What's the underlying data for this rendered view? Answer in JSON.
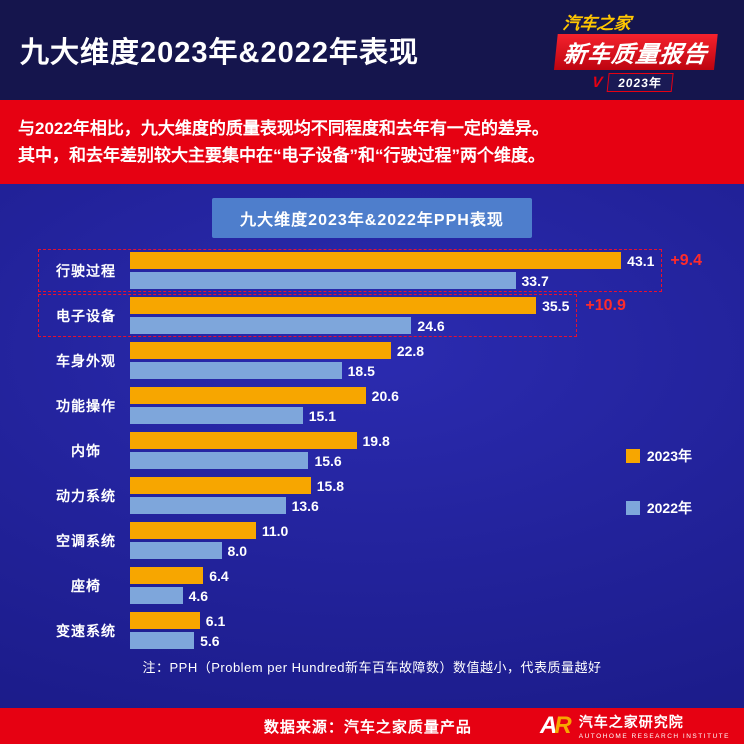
{
  "header": {
    "title": "九大维度2023年&2022年表现",
    "logo": {
      "brand": "汽车之家",
      "report": "新车质量报告",
      "year": "2023年",
      "check_icon": "V"
    }
  },
  "intro": {
    "line1": "与2022年相比，九大维度的质量表现均不同程度和去年有一定的差异。",
    "line2": "其中，和去年差别较大主要集中在“电子设备”和“行驶过程”两个维度。"
  },
  "chart_data": {
    "type": "bar",
    "orientation": "horizontal",
    "title": "九大维度2023年&2022年PPH表现",
    "categories": [
      "行驶过程",
      "电子设备",
      "车身外观",
      "功能操作",
      "内饰",
      "动力系统",
      "空调系统",
      "座椅",
      "变速系统"
    ],
    "series": [
      {
        "name": "2023年",
        "color": "#F7A600",
        "values": [
          43.1,
          35.5,
          22.8,
          20.6,
          19.8,
          15.8,
          11.0,
          6.4,
          6.1
        ]
      },
      {
        "name": "2022年",
        "color": "#7EA6DB",
        "values": [
          33.7,
          24.6,
          18.5,
          15.1,
          15.6,
          13.6,
          8.0,
          4.6,
          5.6
        ]
      }
    ],
    "annotations": [
      {
        "category": "行驶过程",
        "text": "+9.4"
      },
      {
        "category": "电子设备",
        "text": "+10.9"
      }
    ],
    "highlighted": [
      "行驶过程",
      "电子设备"
    ],
    "xlim": [
      0,
      50
    ],
    "grid": false,
    "legend_position": "right",
    "note": "注：PPH（Problem per Hundred新车百车故障数）数值越小，代表质量越好"
  },
  "footer": {
    "source": "数据来源：汽车之家质量产品",
    "logo_mark_a": "A",
    "logo_mark_r": "R",
    "institute_cn": "汽车之家研究院",
    "institute_en": "AUTOHOME RESEARCH INSTITUTE"
  }
}
